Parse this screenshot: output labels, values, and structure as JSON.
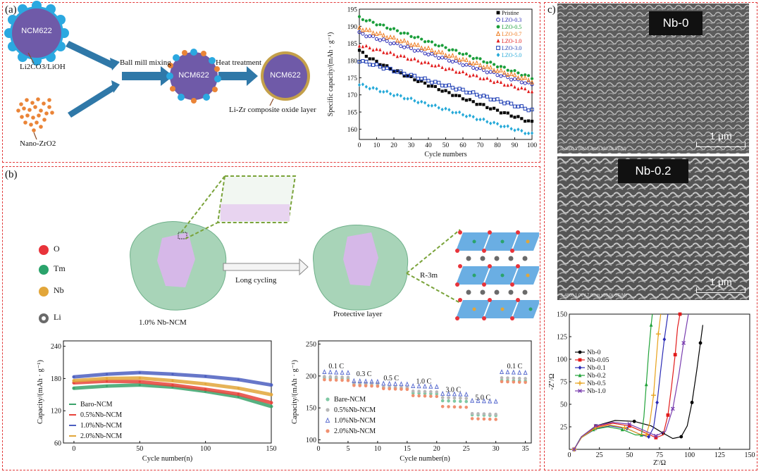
{
  "panel_a": {
    "label": "(a)",
    "ncm": "NCM622",
    "precursor1": "Li2CO3/LiOH",
    "precursor2": "Nano-ZrO2",
    "step1": "Ball mill mixing",
    "step2": "Heat treatment",
    "product": "Li-Zr composite oxide layer"
  },
  "panel_b": {
    "label": "(b)",
    "legend": [
      "O",
      "Tm",
      "Nb",
      "Li"
    ],
    "arrow_label": "Long cycling",
    "left_caption": "1.0% Nb-NCM",
    "right_caption": "Protective layer",
    "structure": "R-3m"
  },
  "panel_c": {
    "label": "c)",
    "sem1_tag": "Nb-0",
    "sem2_tag": "Nb-0.2",
    "scale": "1 μm",
    "sem1_info": "S-4800 1.0kV 8.4mm x30.0k SE(U)",
    "sem2_info": "S-4800 1.0kV 7.8mm x30.0k SE(M)"
  },
  "chart_data": [
    {
      "id": "cycle-capacity-a",
      "type": "scatter",
      "xlabel": "Cycle numbers",
      "ylabel": "Specific capacity/(mAh · g⁻¹)",
      "xlim": [
        0,
        100
      ],
      "ylim": [
        157,
        195
      ],
      "xticks": [
        0,
        10,
        20,
        30,
        40,
        50,
        60,
        70,
        80,
        90,
        100
      ],
      "yticks": [
        160,
        165,
        170,
        175,
        180,
        185,
        190,
        195
      ],
      "legend_position": "top-right",
      "series": [
        {
          "name": "Pristine",
          "color": "#000000",
          "marker": "square",
          "start": 183,
          "end": 162
        },
        {
          "name": "LZO-0.3",
          "color": "#2b2bb5",
          "marker": "circle-open",
          "start": 188,
          "end": 173
        },
        {
          "name": "LZO-0.5",
          "color": "#1a9e3a",
          "marker": "circle",
          "start": 192.5,
          "end": 175
        },
        {
          "name": "LZO-0.7",
          "color": "#ef7d22",
          "marker": "triangle-open",
          "start": 189.5,
          "end": 174
        },
        {
          "name": "LZO-1.0",
          "color": "#e21b1b",
          "marker": "triangle",
          "start": 184.5,
          "end": 171
        },
        {
          "name": "LZO-3.0",
          "color": "#1f3fb5",
          "marker": "square-open",
          "start": 180,
          "end": 165.5
        },
        {
          "name": "LZO-5.0",
          "color": "#25a9d8",
          "marker": "diamond",
          "start": 173,
          "end": 158.5
        }
      ]
    },
    {
      "id": "cycle-capacity-b",
      "type": "scatter",
      "xlabel": "Cycle number(n)",
      "ylabel": "Capacity/(mAh · g⁻¹)",
      "xlim": [
        -8,
        150
      ],
      "ylim": [
        60,
        250
      ],
      "xticks": [
        0,
        50,
        100,
        150
      ],
      "yticks": [
        60,
        120,
        180,
        240
      ],
      "legend_position": "bottom-left",
      "series": [
        {
          "name": "Baro-NCM",
          "color": "#3aa36b",
          "points": [
            [
              0,
              162
            ],
            [
              25,
              166
            ],
            [
              50,
              168
            ],
            [
              75,
              164
            ],
            [
              100,
              156
            ],
            [
              125,
              146
            ],
            [
              150,
              128
            ]
          ]
        },
        {
          "name": "0.5%Nb-NCM",
          "color": "#e8433a",
          "points": [
            [
              0,
              172
            ],
            [
              25,
              175
            ],
            [
              50,
              174
            ],
            [
              75,
              168
            ],
            [
              100,
              160
            ],
            [
              125,
              151
            ],
            [
              150,
              135
            ]
          ]
        },
        {
          "name": "1.0%Nb-NCM",
          "color": "#4c5fc0",
          "points": [
            [
              0,
              183
            ],
            [
              25,
              188
            ],
            [
              50,
              191
            ],
            [
              75,
              188
            ],
            [
              100,
              184
            ],
            [
              125,
              178
            ],
            [
              150,
              168
            ]
          ]
        },
        {
          "name": "2.0%Nb-NCM",
          "color": "#e2a63a",
          "points": [
            [
              0,
              176
            ],
            [
              25,
              180
            ],
            [
              50,
              181
            ],
            [
              75,
              176
            ],
            [
              100,
              170
            ],
            [
              125,
              162
            ],
            [
              150,
              150
            ]
          ]
        }
      ]
    },
    {
      "id": "rate-capacity",
      "type": "scatter",
      "xlabel": "Cycle number(n)",
      "ylabel": "Capacity/(mAh · g⁻¹)",
      "xlim": [
        0,
        36
      ],
      "ylim": [
        95,
        255
      ],
      "xticks": [
        0,
        5,
        10,
        15,
        20,
        25,
        30,
        35
      ],
      "yticks": [
        100,
        150,
        200,
        250
      ],
      "legend_position": "bottom-left",
      "rate_labels": [
        {
          "text": "0.1 C",
          "x": 3,
          "y": 212
        },
        {
          "text": "0.3 C",
          "x": 7.7,
          "y": 200
        },
        {
          "text": "0.5 C",
          "x": 12.3,
          "y": 193
        },
        {
          "text": "1.0 C",
          "x": 17.8,
          "y": 188
        },
        {
          "text": "3.0 C",
          "x": 22.8,
          "y": 175
        },
        {
          "text": "5.0 C",
          "x": 27.8,
          "y": 163
        },
        {
          "text": "0.1 C",
          "x": 33.2,
          "y": 212
        }
      ],
      "series": [
        {
          "name": "Bare-NCM",
          "color": "#7fc9a4",
          "values": [
            196,
            186,
            180,
            172,
            160,
            138,
            192
          ]
        },
        {
          "name": "0.5%Nb-NCM",
          "color": "#b7b7b7",
          "values": [
            198,
            188,
            182,
            175,
            165,
            140,
            196
          ]
        },
        {
          "name": "1.0%Nb-NCM",
          "color": "#5d6fd0",
          "values": [
            205,
            191,
            187,
            183,
            171,
            160,
            205
          ]
        },
        {
          "name": "2.0%Nb-NCM",
          "color": "#f09070",
          "values": [
            193,
            184,
            179,
            168,
            151,
            132,
            190
          ]
        }
      ]
    },
    {
      "id": "eis-nyquist",
      "type": "line",
      "xlabel": "Z'/Ω",
      "ylabel": "-Z''/Ω",
      "xlim": [
        0,
        150
      ],
      "ylim": [
        0,
        150
      ],
      "xticks": [
        0,
        25,
        50,
        75,
        100,
        125,
        150
      ],
      "yticks": [
        25,
        50,
        75,
        100,
        125,
        150
      ],
      "legend_position": "center-left",
      "series": [
        {
          "name": "Nb-0",
          "color": "#000000",
          "marker": "circle",
          "points": [
            [
              4,
              0
            ],
            [
              10,
              14
            ],
            [
              22,
              26
            ],
            [
              38,
              32
            ],
            [
              54,
              31
            ],
            [
              68,
              26
            ],
            [
              78,
              18
            ],
            [
              86,
              12
            ],
            [
              93,
              14
            ],
            [
              98,
              26
            ],
            [
              102,
              52
            ],
            [
              106,
              88
            ],
            [
              109,
              118
            ],
            [
              111,
              138
            ]
          ]
        },
        {
          "name": "Nb-0.05",
          "color": "#e21b1b",
          "marker": "square",
          "points": [
            [
              4,
              0
            ],
            [
              10,
              14
            ],
            [
              22,
              25
            ],
            [
              36,
              29
            ],
            [
              50,
              26
            ],
            [
              62,
              19
            ],
            [
              72,
              13
            ],
            [
              78,
              16
            ],
            [
              82,
              38
            ],
            [
              85,
              70
            ],
            [
              88,
              105
            ],
            [
              90,
              135
            ],
            [
              92,
              150
            ]
          ]
        },
        {
          "name": "Nb-0.1",
          "color": "#2b2bb5",
          "marker": "diamond",
          "points": [
            [
              4,
              0
            ],
            [
              10,
              13
            ],
            [
              22,
              23
            ],
            [
              34,
              26
            ],
            [
              48,
              23
            ],
            [
              60,
              16
            ],
            [
              66,
              14
            ],
            [
              70,
              24
            ],
            [
              73,
              52
            ],
            [
              76,
              88
            ],
            [
              79,
              122
            ],
            [
              82,
              150
            ]
          ]
        },
        {
          "name": "Nb-0.2",
          "color": "#22a33a",
          "marker": "triangle",
          "points": [
            [
              4,
              0
            ],
            [
              9,
              12
            ],
            [
              20,
              22
            ],
            [
              32,
              25
            ],
            [
              44,
              22
            ],
            [
              55,
              16
            ],
            [
              60,
              16
            ],
            [
              62,
              36
            ],
            [
              64,
              72
            ],
            [
              66,
              108
            ],
            [
              68,
              138
            ],
            [
              69,
              150
            ]
          ]
        },
        {
          "name": "Nb-0.5",
          "color": "#e8a21b",
          "marker": "plus",
          "points": [
            [
              4,
              0
            ],
            [
              10,
              13
            ],
            [
              22,
              24
            ],
            [
              34,
              27
            ],
            [
              46,
              24
            ],
            [
              58,
              17
            ],
            [
              64,
              16
            ],
            [
              67,
              30
            ],
            [
              70,
              60
            ],
            [
              72,
              95
            ],
            [
              74,
              128
            ],
            [
              76,
              150
            ]
          ]
        },
        {
          "name": "Nb-1.0",
          "color": "#7a3fb0",
          "marker": "cross",
          "points": [
            [
              4,
              0
            ],
            [
              10,
              14
            ],
            [
              22,
              26
            ],
            [
              36,
              30
            ],
            [
              50,
              28
            ],
            [
              62,
              21
            ],
            [
              72,
              15
            ],
            [
              80,
              20
            ],
            [
              86,
              45
            ],
            [
              91,
              82
            ],
            [
              95,
              118
            ],
            [
              99,
              150
            ]
          ]
        }
      ]
    }
  ]
}
